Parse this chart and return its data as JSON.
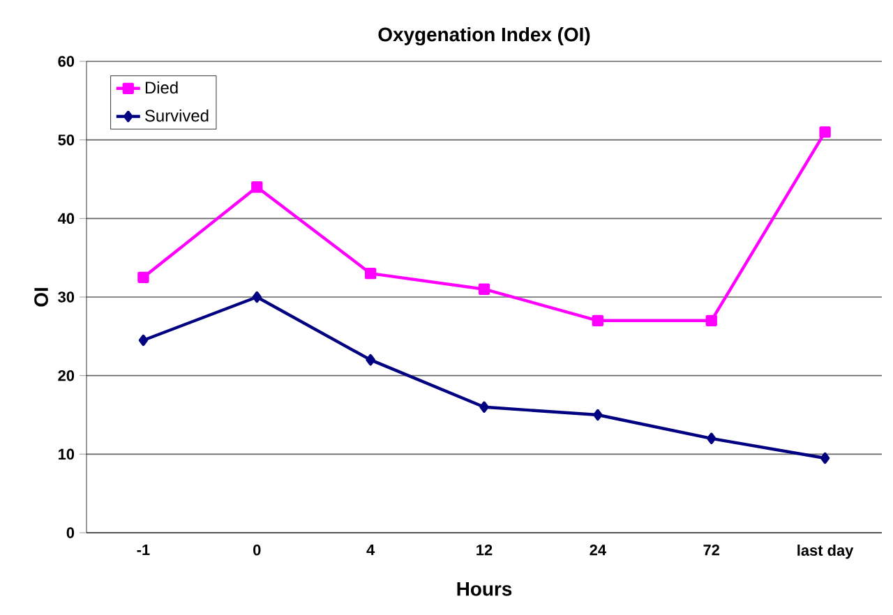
{
  "chart_data": {
    "type": "line",
    "title": "Oxygenation Index (OI)",
    "xlabel": "Hours",
    "ylabel": "OI",
    "categories": [
      "-1",
      "0",
      "4",
      "12",
      "24",
      "72",
      "last day"
    ],
    "series": [
      {
        "name": "Died",
        "color": "#ff00ff",
        "marker": "square",
        "values": [
          32.5,
          44,
          33,
          31,
          27,
          27,
          51
        ]
      },
      {
        "name": "Survived",
        "color": "#000080",
        "marker": "diamond",
        "values": [
          24.5,
          30,
          22,
          16,
          15,
          12,
          9.5
        ]
      }
    ],
    "ylim": [
      0,
      60
    ],
    "yticks": [
      0,
      10,
      20,
      30,
      40,
      50,
      60
    ],
    "grid": "y",
    "legend": "top left",
    "line_style": "solid"
  }
}
